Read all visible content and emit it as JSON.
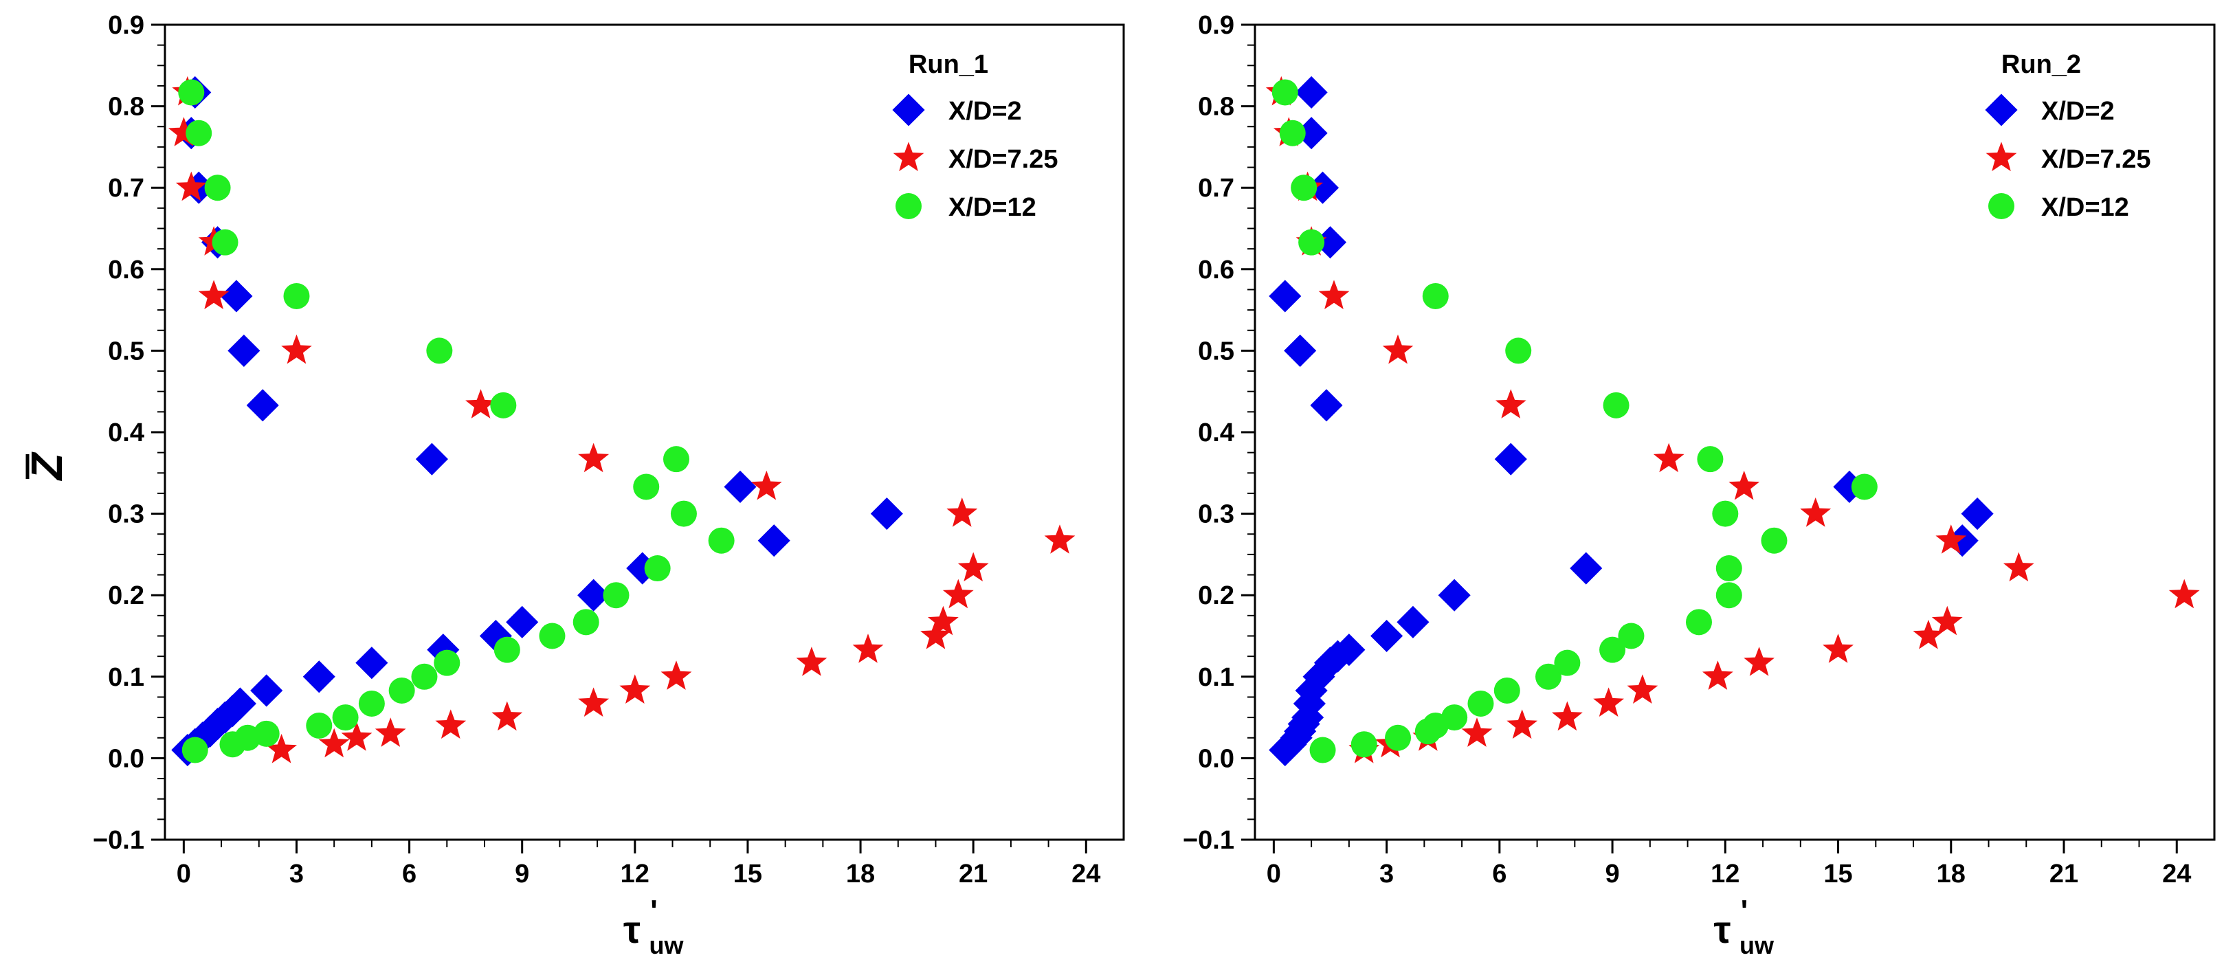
{
  "chart_data": [
    {
      "type": "scatter",
      "title": "",
      "legend_title": "Run_1",
      "legend_position": "top-right",
      "ylabel": "Z",
      "xlabel_main": "τ",
      "xlabel_prime": "'",
      "xlabel_sub": "uw",
      "xlim": [
        -0.5,
        25
      ],
      "ylim": [
        -0.1,
        0.9
      ],
      "x_ticks": [
        0,
        3,
        6,
        9,
        12,
        15,
        18,
        21,
        24
      ],
      "x_tick_labels": [
        "0",
        "3",
        "6",
        "9",
        "12",
        "15",
        "18",
        "21",
        "24"
      ],
      "y_ticks": [
        -0.1,
        0.0,
        0.1,
        0.2,
        0.3,
        0.4,
        0.5,
        0.6,
        0.7,
        0.8,
        0.9
      ],
      "y_tick_labels": [
        "−0.1",
        "0.0",
        "0.1",
        "0.2",
        "0.3",
        "0.4",
        "0.5",
        "0.6",
        "0.7",
        "0.8",
        "0.9"
      ],
      "grid": false,
      "series": [
        {
          "name": "X/D=2",
          "marker": "diamond",
          "color": "#0000ee",
          "points": [
            [
              0.1,
              0.01
            ],
            [
              0.3,
              0.017
            ],
            [
              0.5,
              0.025
            ],
            [
              0.7,
              0.033
            ],
            [
              0.9,
              0.042
            ],
            [
              1.1,
              0.05
            ],
            [
              1.3,
              0.058
            ],
            [
              1.5,
              0.067
            ],
            [
              2.2,
              0.083
            ],
            [
              3.6,
              0.1
            ],
            [
              5.0,
              0.117
            ],
            [
              6.9,
              0.133
            ],
            [
              8.3,
              0.15
            ],
            [
              9.0,
              0.167
            ],
            [
              10.9,
              0.2
            ],
            [
              12.2,
              0.233
            ],
            [
              15.7,
              0.267
            ],
            [
              18.7,
              0.3
            ],
            [
              14.8,
              0.333
            ],
            [
              6.6,
              0.367
            ],
            [
              2.1,
              0.433
            ],
            [
              1.6,
              0.5
            ],
            [
              1.4,
              0.567
            ],
            [
              0.9,
              0.633
            ],
            [
              0.4,
              0.7
            ],
            [
              0.2,
              0.767
            ],
            [
              0.3,
              0.817
            ]
          ]
        },
        {
          "name": "X/D=7.25",
          "marker": "star",
          "color": "#ee1111",
          "points": [
            [
              2.6,
              0.01
            ],
            [
              4.0,
              0.017
            ],
            [
              4.6,
              0.025
            ],
            [
              5.5,
              0.03
            ],
            [
              7.1,
              0.04
            ],
            [
              8.6,
              0.05
            ],
            [
              10.9,
              0.067
            ],
            [
              12.0,
              0.083
            ],
            [
              13.1,
              0.1
            ],
            [
              16.7,
              0.117
            ],
            [
              18.2,
              0.133
            ],
            [
              20.0,
              0.15
            ],
            [
              20.2,
              0.167
            ],
            [
              20.6,
              0.2
            ],
            [
              21.0,
              0.233
            ],
            [
              23.3,
              0.267
            ],
            [
              20.7,
              0.3
            ],
            [
              15.5,
              0.333
            ],
            [
              10.9,
              0.367
            ],
            [
              7.9,
              0.433
            ],
            [
              3.0,
              0.5
            ],
            [
              0.8,
              0.567
            ],
            [
              0.8,
              0.633
            ],
            [
              0.2,
              0.7
            ],
            [
              0.0,
              0.767
            ],
            [
              0.1,
              0.817
            ]
          ]
        },
        {
          "name": "X/D=12",
          "marker": "circle",
          "color": "#22ee22",
          "points": [
            [
              0.3,
              0.01
            ],
            [
              1.3,
              0.017
            ],
            [
              1.7,
              0.025
            ],
            [
              2.2,
              0.03
            ],
            [
              3.6,
              0.04
            ],
            [
              4.3,
              0.05
            ],
            [
              5.0,
              0.067
            ],
            [
              5.8,
              0.083
            ],
            [
              6.4,
              0.1
            ],
            [
              7.0,
              0.117
            ],
            [
              8.6,
              0.133
            ],
            [
              9.8,
              0.15
            ],
            [
              10.7,
              0.167
            ],
            [
              11.5,
              0.2
            ],
            [
              12.6,
              0.233
            ],
            [
              14.3,
              0.267
            ],
            [
              13.3,
              0.3
            ],
            [
              12.3,
              0.333
            ],
            [
              13.1,
              0.367
            ],
            [
              8.5,
              0.433
            ],
            [
              6.8,
              0.5
            ],
            [
              3.0,
              0.567
            ],
            [
              1.1,
              0.633
            ],
            [
              0.9,
              0.7
            ],
            [
              0.4,
              0.767
            ],
            [
              0.2,
              0.817
            ]
          ]
        }
      ]
    },
    {
      "type": "scatter",
      "title": "",
      "legend_title": "Run_2",
      "legend_position": "top-right",
      "ylabel": "",
      "xlabel_main": "τ",
      "xlabel_prime": "'",
      "xlabel_sub": "uw",
      "xlim": [
        -0.5,
        25
      ],
      "ylim": [
        -0.1,
        0.9
      ],
      "x_ticks": [
        0,
        3,
        6,
        9,
        12,
        15,
        18,
        21,
        24
      ],
      "x_tick_labels": [
        "0",
        "3",
        "6",
        "9",
        "12",
        "15",
        "18",
        "21",
        "24"
      ],
      "y_ticks": [
        -0.1,
        0.0,
        0.1,
        0.2,
        0.3,
        0.4,
        0.5,
        0.6,
        0.7,
        0.8,
        0.9
      ],
      "y_tick_labels": [
        "−0.1",
        "0.0",
        "0.1",
        "0.2",
        "0.3",
        "0.4",
        "0.5",
        "0.6",
        "0.7",
        "0.8",
        "0.9"
      ],
      "grid": false,
      "series": [
        {
          "name": "X/D=2",
          "marker": "diamond",
          "color": "#0000ee",
          "points": [
            [
              0.3,
              0.01
            ],
            [
              0.45,
              0.017
            ],
            [
              0.6,
              0.025
            ],
            [
              0.7,
              0.033
            ],
            [
              0.8,
              0.042
            ],
            [
              0.9,
              0.05
            ],
            [
              0.95,
              0.067
            ],
            [
              1.0,
              0.083
            ],
            [
              1.2,
              0.1
            ],
            [
              1.5,
              0.117
            ],
            [
              1.7,
              0.125
            ],
            [
              2.0,
              0.133
            ],
            [
              3.0,
              0.15
            ],
            [
              3.7,
              0.167
            ],
            [
              4.8,
              0.2
            ],
            [
              8.3,
              0.233
            ],
            [
              18.3,
              0.267
            ],
            [
              18.7,
              0.3
            ],
            [
              15.3,
              0.333
            ],
            [
              6.3,
              0.367
            ],
            [
              1.4,
              0.433
            ],
            [
              0.7,
              0.5
            ],
            [
              0.3,
              0.567
            ],
            [
              1.5,
              0.633
            ],
            [
              1.3,
              0.7
            ],
            [
              1.0,
              0.767
            ],
            [
              1.0,
              0.817
            ]
          ]
        },
        {
          "name": "X/D=7.25",
          "marker": "star",
          "color": "#ee1111",
          "points": [
            [
              2.4,
              0.01
            ],
            [
              3.1,
              0.017
            ],
            [
              4.1,
              0.025
            ],
            [
              5.4,
              0.03
            ],
            [
              6.6,
              0.04
            ],
            [
              7.8,
              0.05
            ],
            [
              8.9,
              0.067
            ],
            [
              9.8,
              0.083
            ],
            [
              11.8,
              0.1
            ],
            [
              12.9,
              0.117
            ],
            [
              15.0,
              0.133
            ],
            [
              17.4,
              0.15
            ],
            [
              17.9,
              0.167
            ],
            [
              24.2,
              0.2
            ],
            [
              19.8,
              0.233
            ],
            [
              18.0,
              0.267
            ],
            [
              14.4,
              0.3
            ],
            [
              12.5,
              0.333
            ],
            [
              10.5,
              0.367
            ],
            [
              6.3,
              0.433
            ],
            [
              3.3,
              0.5
            ],
            [
              1.6,
              0.567
            ],
            [
              1.0,
              0.633
            ],
            [
              0.9,
              0.7
            ],
            [
              0.4,
              0.767
            ],
            [
              0.2,
              0.817
            ]
          ]
        },
        {
          "name": "X/D=12",
          "marker": "circle",
          "color": "#22ee22",
          "points": [
            [
              1.3,
              0.01
            ],
            [
              2.4,
              0.017
            ],
            [
              3.3,
              0.025
            ],
            [
              4.1,
              0.033
            ],
            [
              4.3,
              0.04
            ],
            [
              4.8,
              0.05
            ],
            [
              5.5,
              0.067
            ],
            [
              6.2,
              0.083
            ],
            [
              7.3,
              0.1
            ],
            [
              7.8,
              0.117
            ],
            [
              9.0,
              0.133
            ],
            [
              9.5,
              0.15
            ],
            [
              11.3,
              0.167
            ],
            [
              12.1,
              0.2
            ],
            [
              12.1,
              0.233
            ],
            [
              13.3,
              0.267
            ],
            [
              12.0,
              0.3
            ],
            [
              15.7,
              0.333
            ],
            [
              11.6,
              0.367
            ],
            [
              9.1,
              0.433
            ],
            [
              6.5,
              0.5
            ],
            [
              4.3,
              0.567
            ],
            [
              1.0,
              0.633
            ],
            [
              0.8,
              0.7
            ],
            [
              0.5,
              0.767
            ],
            [
              0.3,
              0.817
            ]
          ]
        }
      ]
    }
  ]
}
